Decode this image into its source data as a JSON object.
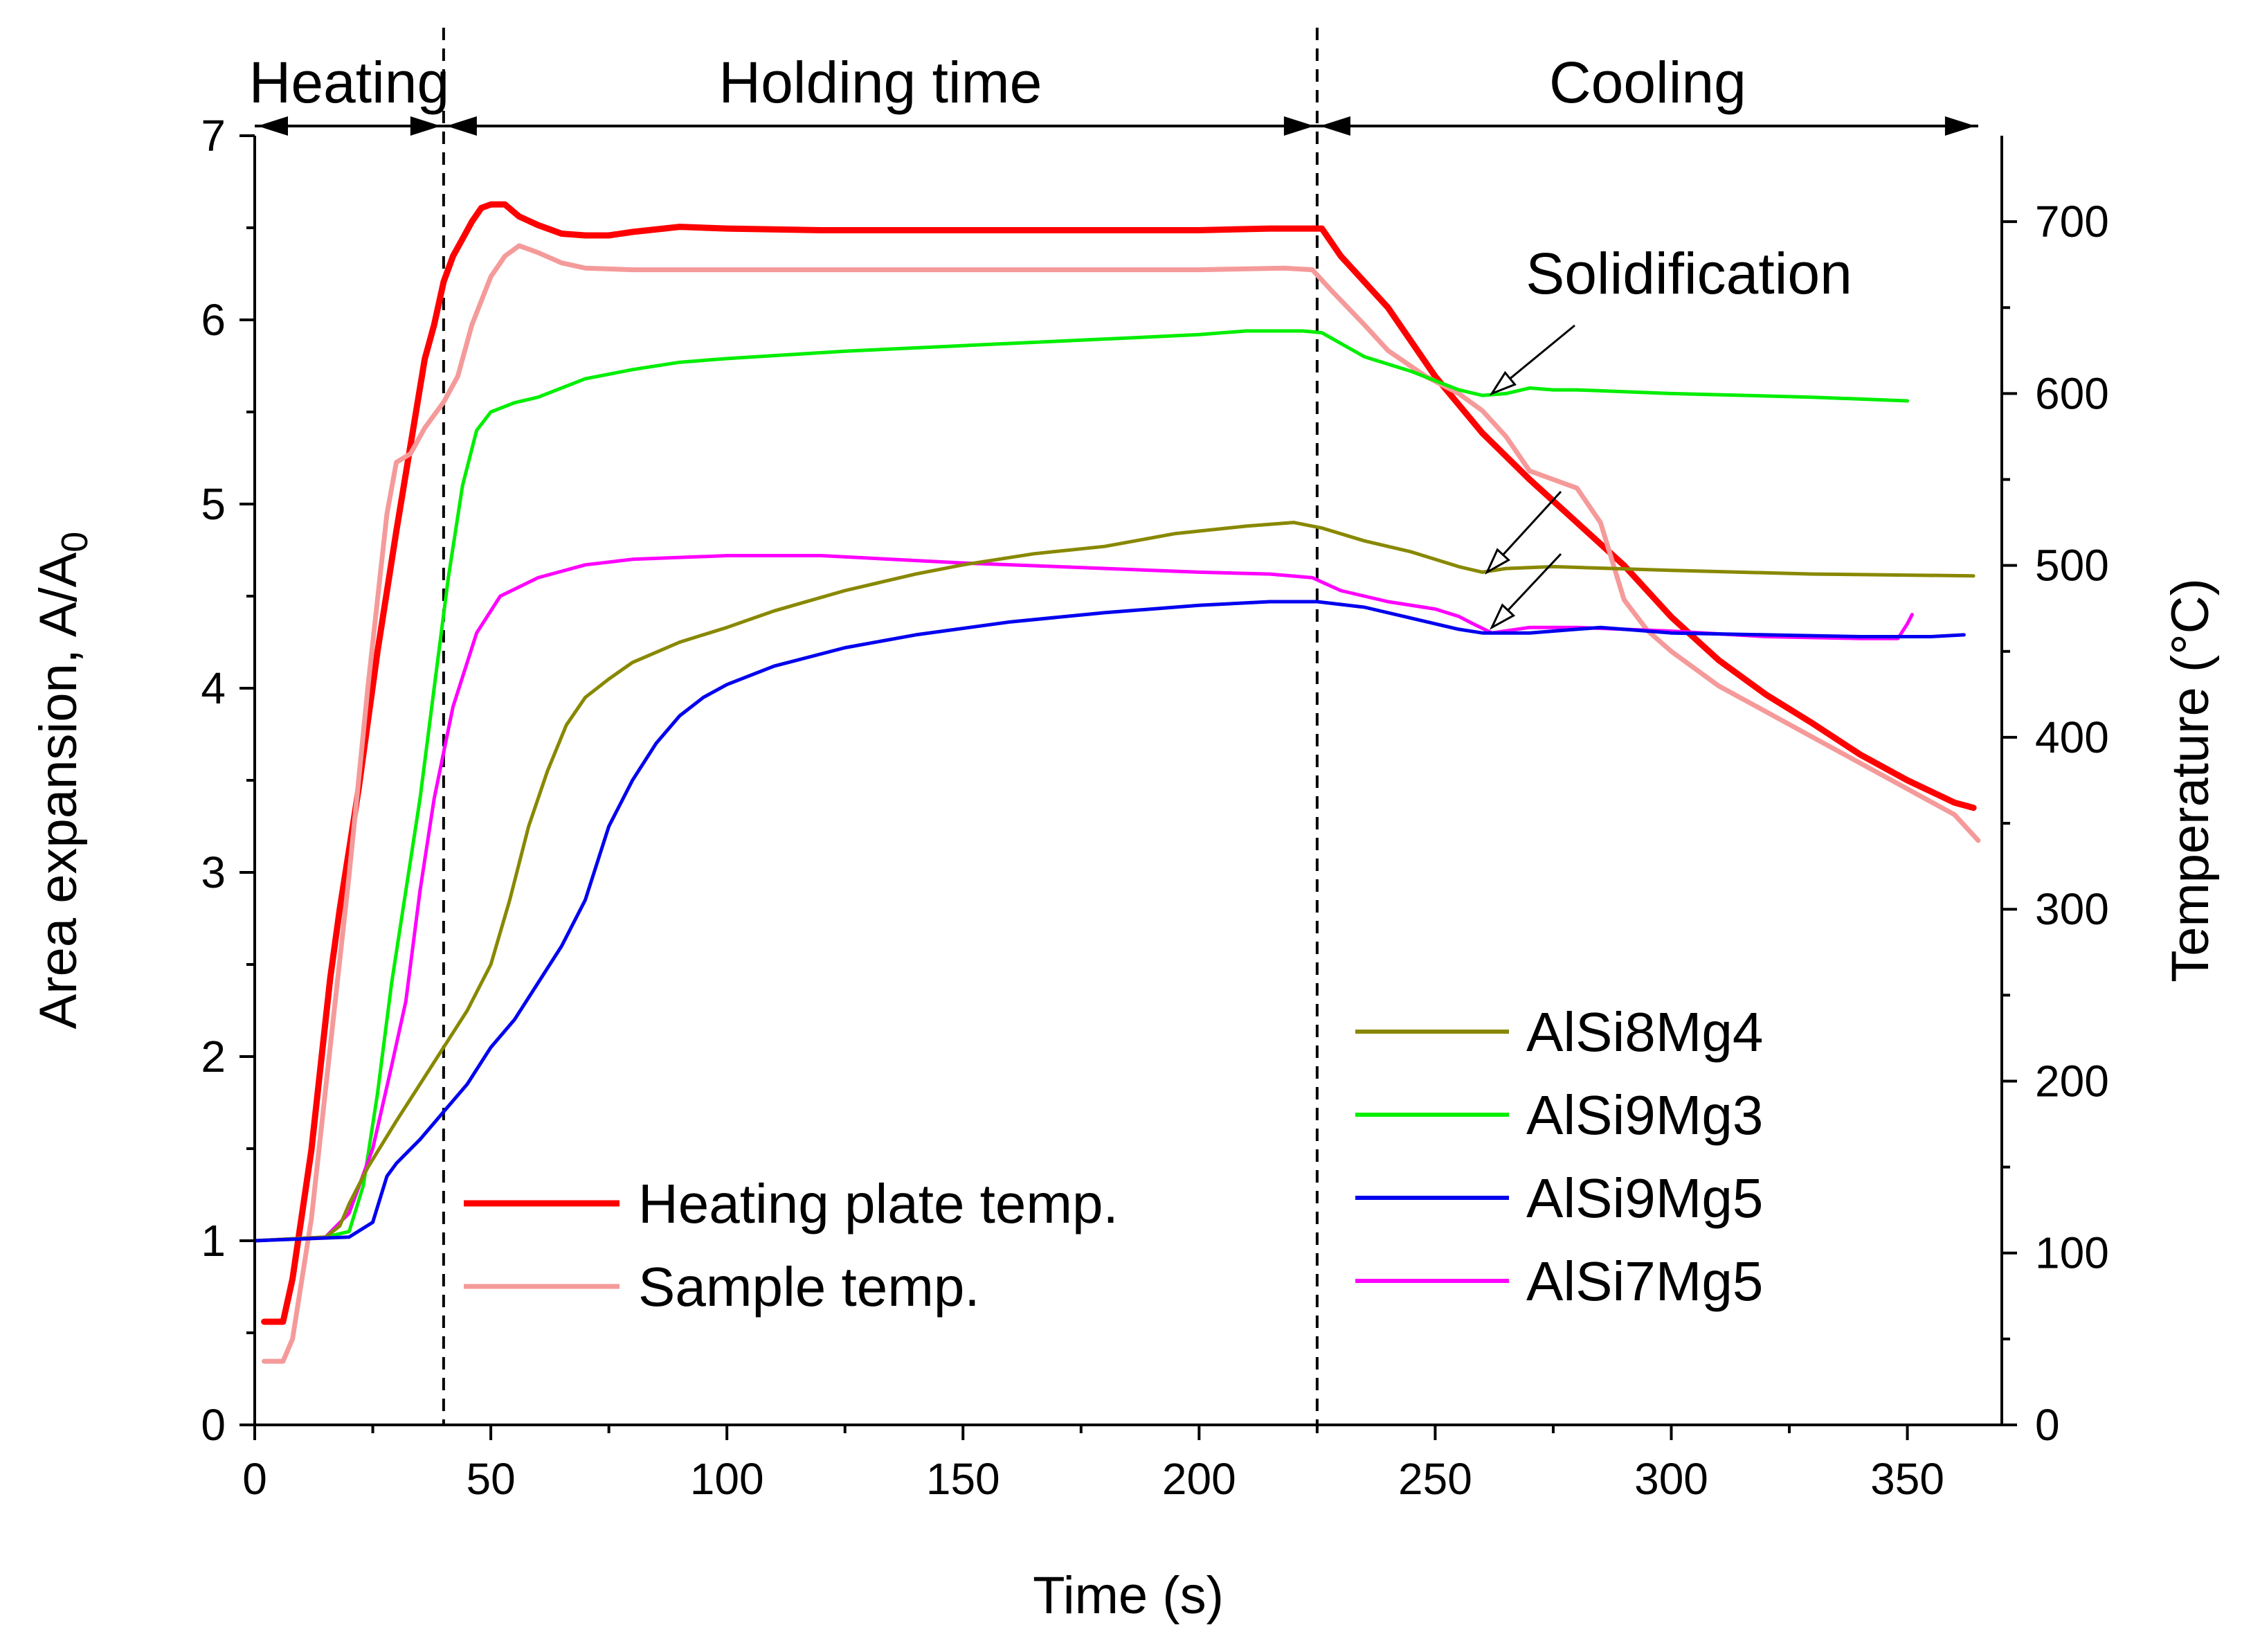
{
  "chart_data": {
    "type": "line",
    "xlabel": "Time (s)",
    "ylabel_left": {
      "main": "Area expansion, A/A",
      "sub": "0"
    },
    "ylabel_right": "Temperature  (°C)",
    "xlim": [
      0,
      370
    ],
    "ylim_left": [
      0,
      7
    ],
    "ylim_right": [
      0,
      750
    ],
    "x_ticks": [
      0,
      50,
      100,
      150,
      200,
      250,
      300,
      350
    ],
    "y_left_ticks": [
      0,
      1,
      2,
      3,
      4,
      5,
      6,
      7
    ],
    "y_right_ticks": [
      0,
      100,
      200,
      300,
      400,
      500,
      600,
      700
    ],
    "phases": [
      {
        "label": "Heating",
        "start": 0,
        "end": 40
      },
      {
        "label": "Holding time",
        "start": 40,
        "end": 225
      },
      {
        "label": "Cooling",
        "start": 225,
        "end": 365
      }
    ],
    "dividers": [
      40,
      225
    ],
    "annotation": {
      "text": "Solidification",
      "targets": [
        {
          "x": 262,
          "y": 5.6
        },
        {
          "x": 261,
          "y": 4.63
        },
        {
          "x": 262,
          "y": 4.33
        }
      ]
    },
    "legend_left": [
      "Heating plate temp.",
      "Sample temp."
    ],
    "legend_right": [
      "AlSi8Mg4",
      "AlSi9Mg3",
      "AlSi9Mg5",
      "AlSi7Mg5"
    ],
    "series": [
      {
        "name": "Heating plate temp.",
        "axis": "right",
        "color": "#ff0000",
        "width": 9,
        "points": [
          [
            2,
            60
          ],
          [
            6,
            60
          ],
          [
            8,
            85
          ],
          [
            12,
            160
          ],
          [
            16,
            260
          ],
          [
            18,
            300
          ],
          [
            22,
            370
          ],
          [
            26,
            450
          ],
          [
            30,
            520
          ],
          [
            33,
            570
          ],
          [
            36,
            620
          ],
          [
            38,
            640
          ],
          [
            40,
            665
          ],
          [
            42,
            680
          ],
          [
            44,
            690
          ],
          [
            46,
            700
          ],
          [
            48,
            708
          ],
          [
            50,
            710
          ],
          [
            53,
            710
          ],
          [
            56,
            703
          ],
          [
            60,
            698
          ],
          [
            65,
            693
          ],
          [
            70,
            692
          ],
          [
            75,
            692
          ],
          [
            80,
            694
          ],
          [
            90,
            697
          ],
          [
            100,
            696
          ],
          [
            120,
            695
          ],
          [
            150,
            695
          ],
          [
            180,
            695
          ],
          [
            200,
            695
          ],
          [
            215,
            696
          ],
          [
            224,
            696
          ],
          [
            226,
            696
          ],
          [
            230,
            680
          ],
          [
            240,
            650
          ],
          [
            250,
            610
          ],
          [
            260,
            577
          ],
          [
            270,
            550
          ],
          [
            280,
            525
          ],
          [
            290,
            500
          ],
          [
            300,
            470
          ],
          [
            310,
            445
          ],
          [
            320,
            425
          ],
          [
            330,
            408
          ],
          [
            340,
            390
          ],
          [
            350,
            375
          ],
          [
            360,
            362
          ],
          [
            364,
            359
          ]
        ]
      },
      {
        "name": "Sample temp.",
        "axis": "right",
        "color": "#f59a9a",
        "width": 7,
        "points": [
          [
            2,
            37
          ],
          [
            6,
            37
          ],
          [
            8,
            50
          ],
          [
            12,
            120
          ],
          [
            16,
            220
          ],
          [
            20,
            320
          ],
          [
            24,
            430
          ],
          [
            28,
            530
          ],
          [
            30,
            560
          ],
          [
            33,
            565
          ],
          [
            36,
            580
          ],
          [
            40,
            595
          ],
          [
            43,
            610
          ],
          [
            46,
            640
          ],
          [
            50,
            668
          ],
          [
            53,
            680
          ],
          [
            56,
            686
          ],
          [
            60,
            682
          ],
          [
            65,
            676
          ],
          [
            70,
            673
          ],
          [
            80,
            672
          ],
          [
            100,
            672
          ],
          [
            150,
            672
          ],
          [
            200,
            672
          ],
          [
            218,
            673
          ],
          [
            224,
            672
          ],
          [
            228,
            660
          ],
          [
            235,
            640
          ],
          [
            240,
            625
          ],
          [
            248,
            610
          ],
          [
            255,
            600
          ],
          [
            260,
            590
          ],
          [
            265,
            575
          ],
          [
            270,
            555
          ],
          [
            275,
            550
          ],
          [
            280,
            545
          ],
          [
            285,
            525
          ],
          [
            290,
            480
          ],
          [
            295,
            462
          ],
          [
            300,
            450
          ],
          [
            310,
            430
          ],
          [
            320,
            415
          ],
          [
            330,
            400
          ],
          [
            340,
            385
          ],
          [
            350,
            370
          ],
          [
            360,
            355
          ],
          [
            365,
            340
          ]
        ]
      },
      {
        "name": "AlSi9Mg3",
        "axis": "left",
        "color": "#00ee00",
        "width": 5,
        "points": [
          [
            0,
            1.0
          ],
          [
            15,
            1.02
          ],
          [
            20,
            1.05
          ],
          [
            23,
            1.3
          ],
          [
            26,
            1.8
          ],
          [
            29,
            2.4
          ],
          [
            32,
            2.9
          ],
          [
            35,
            3.4
          ],
          [
            38,
            4.0
          ],
          [
            41,
            4.6
          ],
          [
            44,
            5.1
          ],
          [
            47,
            5.4
          ],
          [
            50,
            5.5
          ],
          [
            55,
            5.55
          ],
          [
            60,
            5.58
          ],
          [
            70,
            5.68
          ],
          [
            80,
            5.73
          ],
          [
            90,
            5.77
          ],
          [
            100,
            5.79
          ],
          [
            125,
            5.83
          ],
          [
            150,
            5.86
          ],
          [
            175,
            5.89
          ],
          [
            200,
            5.92
          ],
          [
            210,
            5.94
          ],
          [
            222,
            5.94
          ],
          [
            226,
            5.93
          ],
          [
            235,
            5.8
          ],
          [
            245,
            5.72
          ],
          [
            255,
            5.62
          ],
          [
            260,
            5.59
          ],
          [
            265,
            5.6
          ],
          [
            270,
            5.63
          ],
          [
            275,
            5.62
          ],
          [
            280,
            5.62
          ],
          [
            300,
            5.6
          ],
          [
            330,
            5.58
          ],
          [
            350,
            5.56
          ]
        ]
      },
      {
        "name": "AlSi7Mg5",
        "axis": "left",
        "color": "#ff00ff",
        "width": 5,
        "points": [
          [
            0,
            1.0
          ],
          [
            15,
            1.02
          ],
          [
            20,
            1.15
          ],
          [
            25,
            1.5
          ],
          [
            29,
            1.95
          ],
          [
            32,
            2.3
          ],
          [
            35,
            2.9
          ],
          [
            38,
            3.4
          ],
          [
            42,
            3.9
          ],
          [
            47,
            4.3
          ],
          [
            52,
            4.5
          ],
          [
            60,
            4.6
          ],
          [
            70,
            4.67
          ],
          [
            80,
            4.7
          ],
          [
            100,
            4.72
          ],
          [
            120,
            4.72
          ],
          [
            150,
            4.68
          ],
          [
            170,
            4.66
          ],
          [
            200,
            4.63
          ],
          [
            215,
            4.62
          ],
          [
            224,
            4.6
          ],
          [
            230,
            4.53
          ],
          [
            240,
            4.47
          ],
          [
            250,
            4.43
          ],
          [
            255,
            4.39
          ],
          [
            258,
            4.35
          ],
          [
            262,
            4.3
          ],
          [
            270,
            4.33
          ],
          [
            280,
            4.33
          ],
          [
            300,
            4.31
          ],
          [
            320,
            4.28
          ],
          [
            340,
            4.27
          ],
          [
            348,
            4.27
          ],
          [
            350,
            4.35
          ],
          [
            351,
            4.4
          ]
        ]
      },
      {
        "name": "AlSi8Mg4",
        "axis": "left",
        "color": "#888800",
        "width": 5,
        "points": [
          [
            0,
            1.0
          ],
          [
            15,
            1.02
          ],
          [
            18,
            1.08
          ],
          [
            20,
            1.2
          ],
          [
            24,
            1.4
          ],
          [
            30,
            1.65
          ],
          [
            35,
            1.85
          ],
          [
            40,
            2.05
          ],
          [
            45,
            2.25
          ],
          [
            50,
            2.5
          ],
          [
            54,
            2.85
          ],
          [
            58,
            3.25
          ],
          [
            62,
            3.55
          ],
          [
            66,
            3.8
          ],
          [
            70,
            3.95
          ],
          [
            75,
            4.05
          ],
          [
            80,
            4.14
          ],
          [
            90,
            4.25
          ],
          [
            100,
            4.33
          ],
          [
            110,
            4.42
          ],
          [
            125,
            4.53
          ],
          [
            140,
            4.62
          ],
          [
            150,
            4.67
          ],
          [
            165,
            4.73
          ],
          [
            180,
            4.77
          ],
          [
            195,
            4.84
          ],
          [
            210,
            4.88
          ],
          [
            220,
            4.9
          ],
          [
            226,
            4.87
          ],
          [
            235,
            4.8
          ],
          [
            245,
            4.74
          ],
          [
            255,
            4.66
          ],
          [
            260,
            4.63
          ],
          [
            265,
            4.65
          ],
          [
            275,
            4.66
          ],
          [
            300,
            4.64
          ],
          [
            330,
            4.62
          ],
          [
            364,
            4.61
          ]
        ]
      },
      {
        "name": "AlSi9Mg5",
        "axis": "left",
        "color": "#0000ee",
        "width": 5,
        "points": [
          [
            0,
            1.0
          ],
          [
            20,
            1.02
          ],
          [
            25,
            1.1
          ],
          [
            28,
            1.35
          ],
          [
            30,
            1.42
          ],
          [
            35,
            1.55
          ],
          [
            40,
            1.7
          ],
          [
            45,
            1.85
          ],
          [
            50,
            2.05
          ],
          [
            55,
            2.2
          ],
          [
            60,
            2.4
          ],
          [
            65,
            2.6
          ],
          [
            70,
            2.85
          ],
          [
            75,
            3.25
          ],
          [
            80,
            3.5
          ],
          [
            85,
            3.7
          ],
          [
            90,
            3.85
          ],
          [
            95,
            3.95
          ],
          [
            100,
            4.02
          ],
          [
            110,
            4.12
          ],
          [
            125,
            4.22
          ],
          [
            140,
            4.29
          ],
          [
            160,
            4.36
          ],
          [
            180,
            4.41
          ],
          [
            200,
            4.45
          ],
          [
            215,
            4.47
          ],
          [
            225,
            4.47
          ],
          [
            235,
            4.44
          ],
          [
            245,
            4.38
          ],
          [
            255,
            4.32
          ],
          [
            260,
            4.3
          ],
          [
            270,
            4.3
          ],
          [
            285,
            4.33
          ],
          [
            300,
            4.3
          ],
          [
            320,
            4.29
          ],
          [
            340,
            4.28
          ],
          [
            355,
            4.28
          ],
          [
            362,
            4.29
          ]
        ]
      }
    ]
  }
}
